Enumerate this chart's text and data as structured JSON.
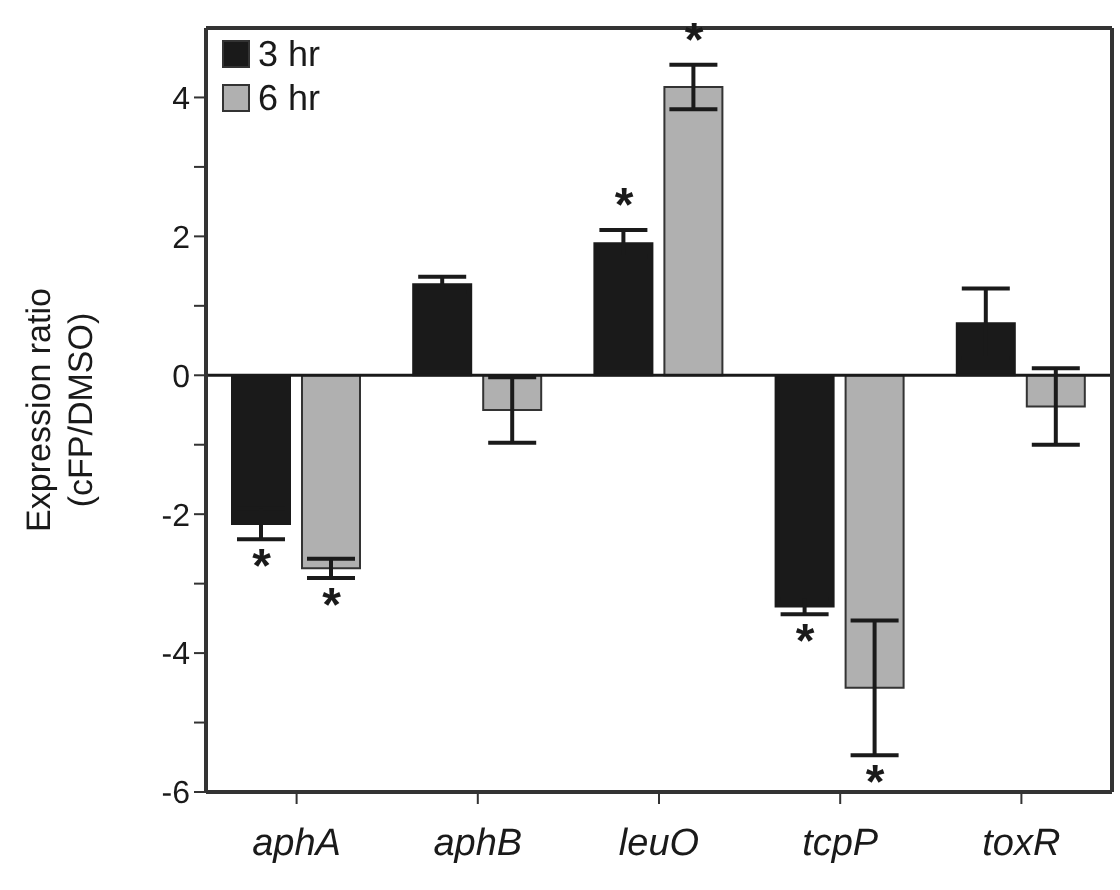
{
  "chart_data": {
    "type": "bar",
    "ylabel": "Expression ratio (cFP/DMSO)",
    "categories": [
      "aphA",
      "aphB",
      "leuO",
      "tcpP",
      "toxR"
    ],
    "series": [
      {
        "name": "3 hr",
        "color": "#1a1a1a",
        "values": [
          -2.14,
          1.31,
          1.9,
          -3.33,
          0.75
        ],
        "errors": [
          0.22,
          0.11,
          0.19,
          0.11,
          0.5
        ]
      },
      {
        "name": "6 hr",
        "color": "#b0b0b0",
        "values": [
          -2.78,
          -0.5,
          4.15,
          -4.5,
          -0.45
        ],
        "errors": [
          0.14,
          0.47,
          0.32,
          0.97,
          0.55
        ]
      }
    ],
    "ylim": [
      -6,
      5
    ],
    "yticks": [
      -6,
      {
        "value": -5,
        "label": null
      },
      -4,
      {
        "value": -3,
        "label": null
      },
      -2,
      {
        "value": -1,
        "label": null
      },
      0,
      {
        "value": 1,
        "label": null
      },
      2,
      {
        "value": 3,
        "label": null
      },
      4
    ],
    "ref_lines": [
      {
        "axis": "y",
        "value": 0,
        "color": "#1a1a1a"
      }
    ],
    "annotations": [
      {
        "text": "*",
        "x": "aphA",
        "y": -2.14
      },
      {
        "text": "*",
        "x": "aphA",
        "y": -2.78
      },
      {
        "text": "*",
        "x": "leuO",
        "y": 1.9
      },
      {
        "text": "*",
        "x": "leuO",
        "y": 4.15
      },
      {
        "text": "*",
        "x": "tcpP",
        "y": -3.33
      },
      {
        "text": "*",
        "x": "tcpP",
        "y": -4.5
      }
    ],
    "legend": "top left",
    "grid": false
  }
}
